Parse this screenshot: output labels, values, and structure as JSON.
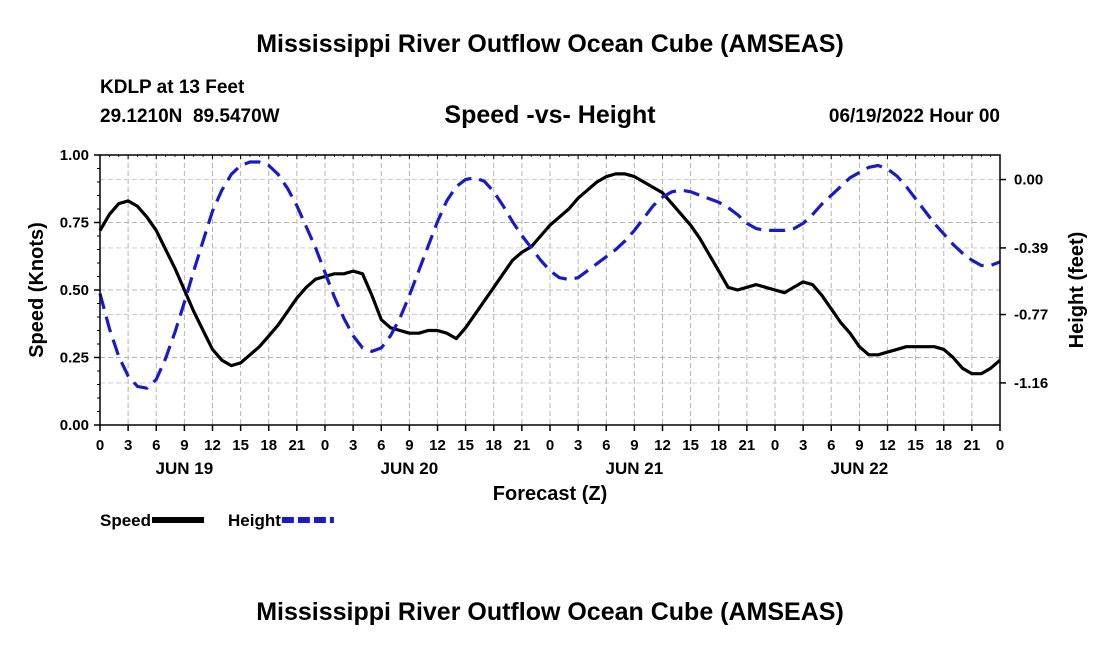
{
  "header": {
    "title": "Mississippi River Outflow Ocean Cube (AMSEAS)",
    "station": "KDLP at 13 Feet",
    "coords": "29.1210N  89.5470W",
    "subtitle": "Speed -vs- Height",
    "datetime": "06/19/2022 Hour 00"
  },
  "footer": {
    "title": "Mississippi River Outflow Ocean Cube (AMSEAS)"
  },
  "chart_data": {
    "type": "line",
    "xlabel": "Forecast (Z)",
    "ylabel": "Speed (Knots)",
    "y2label": "Height (feet)",
    "x_range_hours": [
      0,
      96
    ],
    "x_tick_labels": [
      "0",
      "3",
      "6",
      "9",
      "12",
      "15",
      "18",
      "21",
      "0",
      "3",
      "6",
      "9",
      "12",
      "15",
      "18",
      "21",
      "0",
      "3",
      "6",
      "9",
      "12",
      "15",
      "18",
      "21",
      "0",
      "3",
      "6",
      "9",
      "12",
      "15",
      "18",
      "21",
      "0"
    ],
    "date_labels": [
      {
        "label": "JUN 19",
        "hour": 9
      },
      {
        "label": "JUN 20",
        "hour": 33
      },
      {
        "label": "JUN 21",
        "hour": 57
      },
      {
        "label": "JUN 22",
        "hour": 81
      }
    ],
    "ylim": [
      0,
      1
    ],
    "y_ticks": [
      "0.00",
      "0.25",
      "0.50",
      "0.75",
      "1.00"
    ],
    "y2lim": [
      -1.4,
      0.14
    ],
    "y2_ticks": [
      "0.00",
      "-0.39",
      "-0.77",
      "-1.16"
    ],
    "legend": [
      {
        "name": "Speed",
        "color": "#000000"
      },
      {
        "name": "Height",
        "color": "#1a1acc"
      }
    ],
    "grid": true,
    "series": [
      {
        "name": "Speed",
        "axis": "left",
        "color": "#000000",
        "x": [
          0,
          1,
          2,
          3,
          4,
          5,
          6,
          7,
          8,
          9,
          10,
          11,
          12,
          13,
          14,
          15,
          16,
          17,
          18,
          19,
          20,
          21,
          22,
          23,
          24,
          25,
          26,
          27,
          28,
          29,
          30,
          31,
          32,
          33,
          34,
          35,
          36,
          37,
          38,
          39,
          40,
          41,
          42,
          43,
          44,
          45,
          46,
          47,
          48,
          49,
          50,
          51,
          52,
          53,
          54,
          55,
          56,
          57,
          58,
          59,
          60,
          61,
          62,
          63,
          64,
          65,
          66,
          67,
          68,
          69,
          70,
          71,
          72,
          73,
          74,
          75,
          76,
          77,
          78,
          79,
          80,
          81,
          82,
          83,
          84,
          85,
          86,
          87,
          88,
          89,
          90,
          91,
          92,
          93,
          94,
          95,
          96
        ],
        "values": [
          0.72,
          0.78,
          0.82,
          0.83,
          0.81,
          0.77,
          0.72,
          0.65,
          0.58,
          0.5,
          0.42,
          0.35,
          0.28,
          0.24,
          0.22,
          0.23,
          0.26,
          0.29,
          0.33,
          0.37,
          0.42,
          0.47,
          0.51,
          0.54,
          0.55,
          0.56,
          0.56,
          0.57,
          0.56,
          0.48,
          0.39,
          0.36,
          0.35,
          0.34,
          0.34,
          0.35,
          0.35,
          0.34,
          0.32,
          0.36,
          0.41,
          0.46,
          0.51,
          0.56,
          0.61,
          0.64,
          0.66,
          0.7,
          0.74,
          0.77,
          0.8,
          0.84,
          0.87,
          0.9,
          0.92,
          0.93,
          0.93,
          0.92,
          0.9,
          0.88,
          0.86,
          0.82,
          0.78,
          0.74,
          0.69,
          0.63,
          0.57,
          0.51,
          0.5,
          0.51,
          0.52,
          0.51,
          0.5,
          0.49,
          0.51,
          0.53,
          0.52,
          0.48,
          0.43,
          0.38,
          0.34,
          0.29,
          0.26,
          0.26,
          0.27,
          0.28,
          0.29,
          0.29,
          0.29,
          0.29,
          0.28,
          0.25,
          0.21,
          0.19,
          0.19,
          0.21,
          0.24
        ]
      },
      {
        "name": "Height",
        "axis": "right",
        "color": "#1a1acc",
        "x": [
          0,
          1,
          2,
          3,
          4,
          5,
          6,
          7,
          8,
          9,
          10,
          11,
          12,
          13,
          14,
          15,
          16,
          17,
          18,
          19,
          20,
          21,
          22,
          23,
          24,
          25,
          26,
          27,
          28,
          29,
          30,
          31,
          32,
          33,
          34,
          35,
          36,
          37,
          38,
          39,
          40,
          41,
          42,
          43,
          44,
          45,
          46,
          47,
          48,
          49,
          50,
          51,
          52,
          53,
          54,
          55,
          56,
          57,
          58,
          59,
          60,
          61,
          62,
          63,
          64,
          65,
          66,
          67,
          68,
          69,
          70,
          71,
          72,
          73,
          74,
          75,
          76,
          77,
          78,
          79,
          80,
          81,
          82,
          83,
          84,
          85,
          86,
          87,
          88,
          89,
          90,
          91,
          92,
          93,
          94,
          95,
          96
        ],
        "values": [
          -0.65,
          -0.85,
          -1.01,
          -1.12,
          -1.18,
          -1.19,
          -1.14,
          -1.02,
          -0.87,
          -0.7,
          -0.52,
          -0.35,
          -0.18,
          -0.06,
          0.03,
          0.08,
          0.1,
          0.1,
          0.08,
          0.03,
          -0.05,
          -0.15,
          -0.27,
          -0.39,
          -0.53,
          -0.67,
          -0.79,
          -0.89,
          -0.96,
          -0.98,
          -0.96,
          -0.89,
          -0.79,
          -0.66,
          -0.52,
          -0.38,
          -0.24,
          -0.12,
          -0.04,
          0.0,
          0.01,
          -0.01,
          -0.07,
          -0.15,
          -0.24,
          -0.32,
          -0.39,
          -0.46,
          -0.52,
          -0.56,
          -0.57,
          -0.56,
          -0.52,
          -0.48,
          -0.44,
          -0.4,
          -0.35,
          -0.29,
          -0.22,
          -0.15,
          -0.1,
          -0.07,
          -0.06,
          -0.07,
          -0.09,
          -0.11,
          -0.13,
          -0.16,
          -0.2,
          -0.25,
          -0.28,
          -0.29,
          -0.29,
          -0.29,
          -0.28,
          -0.25,
          -0.2,
          -0.14,
          -0.09,
          -0.04,
          0.01,
          0.04,
          0.07,
          0.08,
          0.06,
          0.02,
          -0.04,
          -0.11,
          -0.18,
          -0.25,
          -0.31,
          -0.37,
          -0.42,
          -0.46,
          -0.49,
          -0.49,
          -0.47
        ]
      }
    ]
  }
}
